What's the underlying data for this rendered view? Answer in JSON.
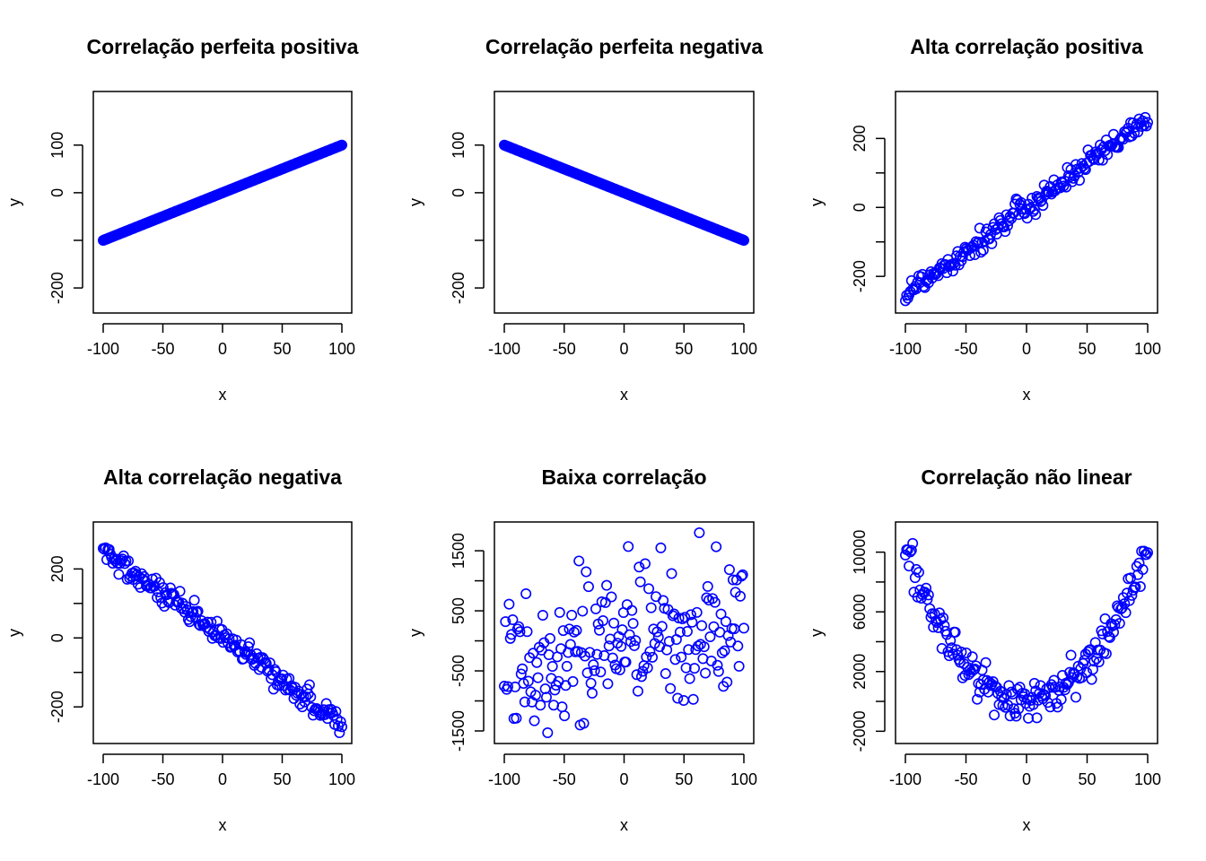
{
  "colors": {
    "points": "#0000ff",
    "axes": "#000000",
    "background": "#ffffff"
  },
  "chart_data": [
    {
      "type": "scatter",
      "title": "Correlação perfeita positiva",
      "xlabel": "x",
      "ylabel": "y",
      "xlim": [
        -100,
        100
      ],
      "ylim": [
        -230,
        190
      ],
      "x_ticks": [
        -100,
        -50,
        0,
        50,
        100
      ],
      "y_ticks": [
        -200,
        -100,
        0,
        100
      ],
      "y_tick_labels": [
        "-200",
        "",
        "0",
        "100"
      ],
      "generator": "linear",
      "slope": 1.0,
      "intercept": 0,
      "noise": 0,
      "n": 300,
      "legend": "none",
      "grid": false,
      "marker": "open-circle",
      "color": "#0000ff"
    },
    {
      "type": "scatter",
      "title": "Correlação perfeita negativa",
      "xlabel": "x",
      "ylabel": "y",
      "xlim": [
        -100,
        100
      ],
      "ylim": [
        -230,
        190
      ],
      "x_ticks": [
        -100,
        -50,
        0,
        50,
        100
      ],
      "y_ticks": [
        -200,
        -100,
        0,
        100
      ],
      "y_tick_labels": [
        "-200",
        "",
        "0",
        "100"
      ],
      "generator": "linear",
      "slope": -1.0,
      "intercept": 0,
      "noise": 0,
      "n": 300,
      "legend": "none",
      "grid": false,
      "marker": "open-circle",
      "color": "#0000ff"
    },
    {
      "type": "scatter",
      "title": "Alta correlação positiva",
      "xlabel": "x",
      "ylabel": "y",
      "xlim": [
        -100,
        100
      ],
      "ylim": [
        -275,
        305
      ],
      "x_ticks": [
        -100,
        -50,
        0,
        50,
        100
      ],
      "y_ticks": [
        -200,
        -100,
        0,
        100,
        200
      ],
      "y_tick_labels": [
        "-200",
        "",
        "0",
        "",
        "200"
      ],
      "generator": "linear",
      "slope": 2.5,
      "intercept": 0,
      "noise": 18,
      "n": 200,
      "legend": "none",
      "grid": false,
      "marker": "open-circle",
      "color": "#0000ff"
    },
    {
      "type": "scatter",
      "title": "Alta correlação negativa",
      "xlabel": "x",
      "ylabel": "y",
      "xlim": [
        -100,
        100
      ],
      "ylim": [
        -275,
        305
      ],
      "x_ticks": [
        -100,
        -50,
        0,
        50,
        100
      ],
      "y_ticks": [
        -200,
        -100,
        0,
        100,
        200
      ],
      "y_tick_labels": [
        "-200",
        "",
        "0",
        "",
        "200"
      ],
      "generator": "linear",
      "slope": -2.5,
      "intercept": 0,
      "noise": 18,
      "n": 200,
      "legend": "none",
      "grid": false,
      "marker": "open-circle",
      "color": "#0000ff"
    },
    {
      "type": "scatter",
      "title": "Baixa correlação",
      "xlabel": "x",
      "ylabel": "y",
      "xlim": [
        -100,
        100
      ],
      "ylim": [
        -1530,
        1800
      ],
      "x_ticks": [
        -100,
        -50,
        0,
        50,
        100
      ],
      "y_ticks": [
        -1500,
        -1000,
        -500,
        0,
        500,
        1000,
        1500
      ],
      "y_tick_labels": [
        "-1500",
        "",
        "-500",
        "",
        "500",
        "",
        "1500"
      ],
      "generator": "linear",
      "slope": 3.0,
      "intercept": 0,
      "noise": 600,
      "n": 200,
      "legend": "none",
      "grid": false,
      "marker": "open-circle",
      "color": "#0000ff"
    },
    {
      "type": "scatter",
      "title": "Correlação não linear",
      "xlabel": "x",
      "ylabel": "y",
      "xlim": [
        -100,
        100
      ],
      "ylim": [
        -2100,
        11300
      ],
      "x_ticks": [
        -100,
        -50,
        0,
        50,
        100
      ],
      "y_ticks": [
        -2000,
        0,
        2000,
        4000,
        6000,
        8000,
        10000
      ],
      "y_tick_labels": [
        "-2000",
        "",
        "2000",
        "",
        "6000",
        "",
        "10000"
      ],
      "generator": "quadratic",
      "coef": 1.0,
      "intercept": 0,
      "noise": 700,
      "n": 200,
      "legend": "none",
      "grid": false,
      "marker": "open-circle",
      "color": "#0000ff"
    }
  ]
}
